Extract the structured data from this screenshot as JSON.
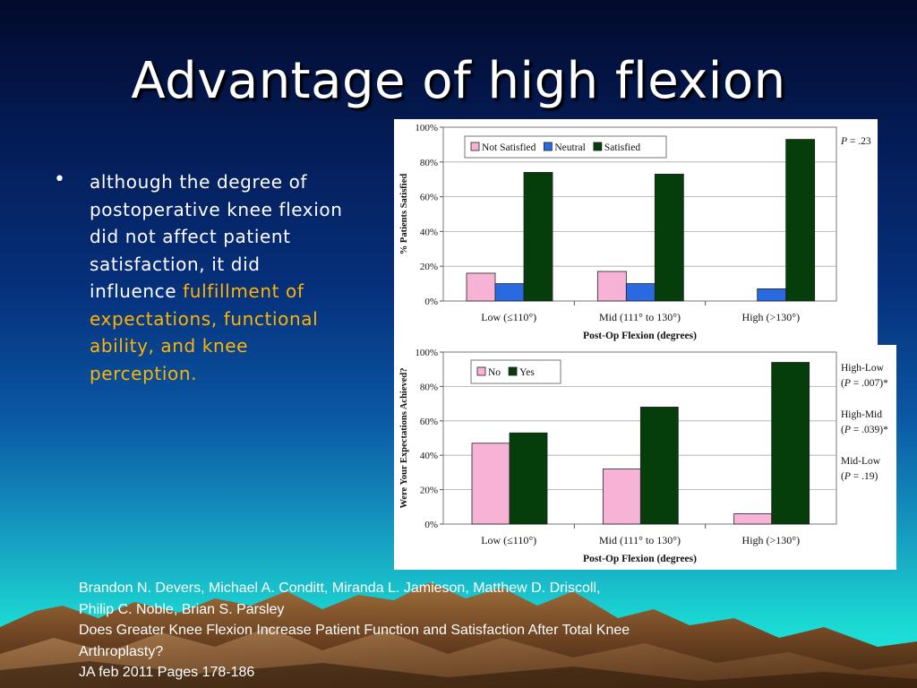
{
  "slide": {
    "title": "Advantage of high flexion",
    "bullet": {
      "marker": "•",
      "text_plain": "although the degree of postoperative knee flexion did not affect patient satisfaction, it did influence ",
      "text_highlight": "fulfillment of expectations, functional ability, and knee perception.",
      "highlight_color": "#ffb400"
    },
    "citation": {
      "authors_line1": "Brandon N. Devers, Michael A. Conditt, Miranda L. Jamieson, Matthew D. Driscoll,",
      "authors_line2": "Philip C. Noble, Brian S. Parsley",
      "title_line1": "Does Greater Knee Flexion Increase Patient Function and Satisfaction After Total Knee",
      "title_line2": "Arthroplasty?",
      "journal": "JA feb 2011 Pages 178-186"
    }
  },
  "chart_data": [
    {
      "type": "bar",
      "categories": [
        "Low (≤110°)",
        "Mid (111° to 130°)",
        "High (>130°)"
      ],
      "series": [
        {
          "name": "Not Satisfied",
          "color": "#f7b3d6",
          "values": [
            16,
            17,
            0
          ]
        },
        {
          "name": "Neutral",
          "color": "#2a6ae0",
          "values": [
            10,
            10,
            7
          ]
        },
        {
          "name": "Satisfied",
          "color": "#053d0b",
          "values": [
            74,
            73,
            93
          ]
        }
      ],
      "ytick_labels": [
        "0%",
        "20%",
        "40%",
        "60%",
        "80%",
        "100%"
      ],
      "ylim": [
        0,
        100
      ],
      "xlabel": "Post-Op Flexion (degrees)",
      "ylabel": "% Patients Satisfied",
      "annotations": [
        {
          "prefix": "P",
          "text": " = .23"
        }
      ],
      "legend": "top-left"
    },
    {
      "type": "bar",
      "categories": [
        "Low (≤110°)",
        "Mid (111° to 130°)",
        "High (>130°)"
      ],
      "series": [
        {
          "name": "No",
          "color": "#f7b3d6",
          "values": [
            47,
            32,
            6
          ]
        },
        {
          "name": "Yes",
          "color": "#053d0b",
          "values": [
            53,
            68,
            94
          ]
        }
      ],
      "ytick_labels": [
        "0%",
        "20%",
        "40%",
        "60%",
        "80%",
        "100%"
      ],
      "ylim": [
        0,
        100
      ],
      "xlabel": "Post-Op Flexion (degrees)",
      "ylabel": "Were Your Expectations Achieved?",
      "annotations": [
        {
          "label": "High-Low",
          "prefix": "P",
          "text": " = .007)*"
        },
        {
          "label": "High-Mid",
          "prefix": "P",
          "text": " = .039)*"
        },
        {
          "label": "Mid-Low",
          "prefix": "P",
          "text": " = .19)"
        }
      ],
      "legend": "top-left"
    }
  ]
}
